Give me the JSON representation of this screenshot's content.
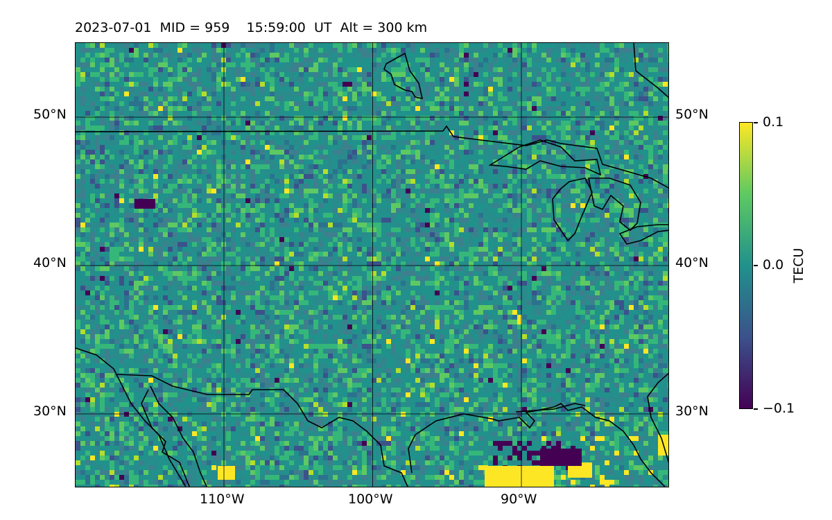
{
  "title": "2023-07-01  MID = 959    15:59:00  UT  Alt = 300 km",
  "map": {
    "extent": {
      "lon": [
        -120,
        -80
      ],
      "lat": [
        25,
        55
      ]
    },
    "gridlines": {
      "lon": [
        -110,
        -100,
        -90
      ],
      "lat": [
        30,
        40,
        50
      ]
    },
    "lat_labels": [
      "50°N",
      "40°N",
      "30°N"
    ],
    "lon_labels": [
      "110°W",
      "100°W",
      "90°W"
    ],
    "field_colors": [
      "#21918c",
      "#2a8a8c",
      "#35b779",
      "#3e7f8e",
      "#5ec962",
      "#2c728e",
      "#3b528b",
      "#fde725",
      "#440154",
      "#b5de2b"
    ]
  },
  "colorbar": {
    "label": "TECU",
    "ticks": [
      "0.1",
      "0.0",
      "−0.1"
    ],
    "range": [
      -0.1,
      0.1
    ],
    "colormap": "viridis"
  }
}
